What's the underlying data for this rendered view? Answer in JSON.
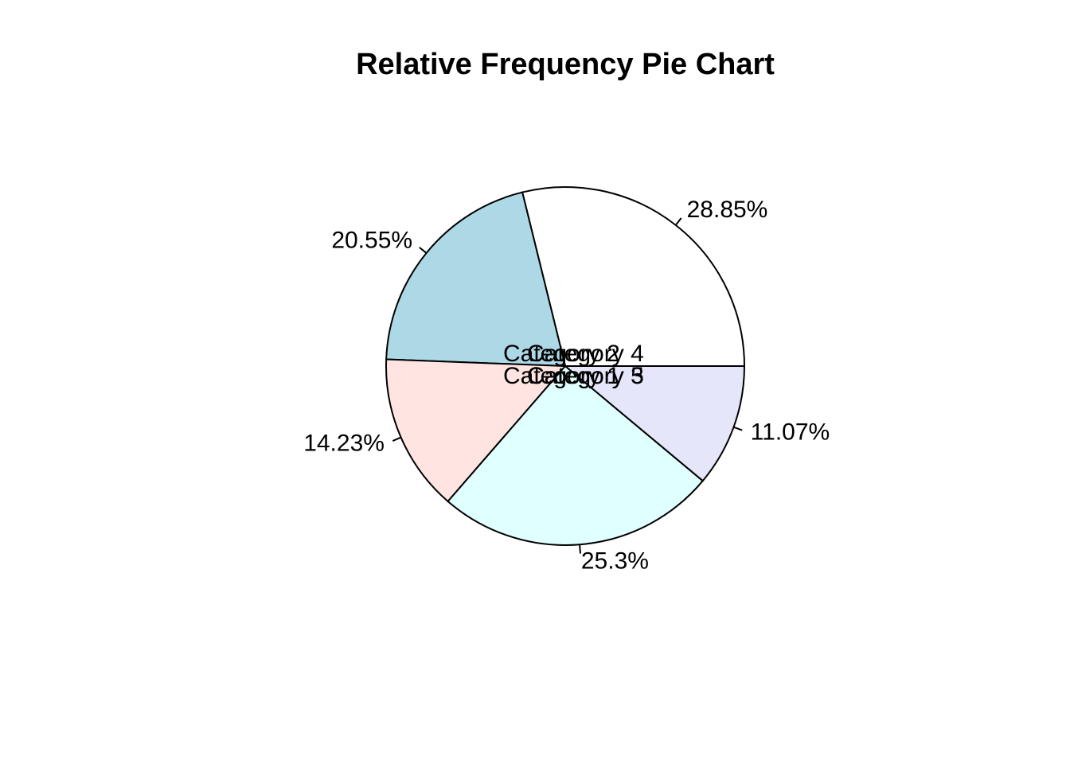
{
  "chart_data": {
    "type": "pie",
    "title": "Relative Frequency Pie Chart",
    "slices": [
      {
        "category": "Category 1",
        "value": 28.85,
        "label": "28.85%",
        "color": "#ffffff"
      },
      {
        "category": "Category 2",
        "value": 20.55,
        "label": "20.55%",
        "color": "#add8e6"
      },
      {
        "category": "Category 3",
        "value": 14.23,
        "label": "14.23%",
        "color": "#ffe4e1"
      },
      {
        "category": "Category 4",
        "value": 25.3,
        "label": "25.3%",
        "color": "#e0ffff"
      },
      {
        "category": "Category 5",
        "value": 11.07,
        "label": "11.07%",
        "color": "#e6e6fa"
      }
    ],
    "start_angle_deg": 0,
    "direction": "counterclockwise"
  }
}
